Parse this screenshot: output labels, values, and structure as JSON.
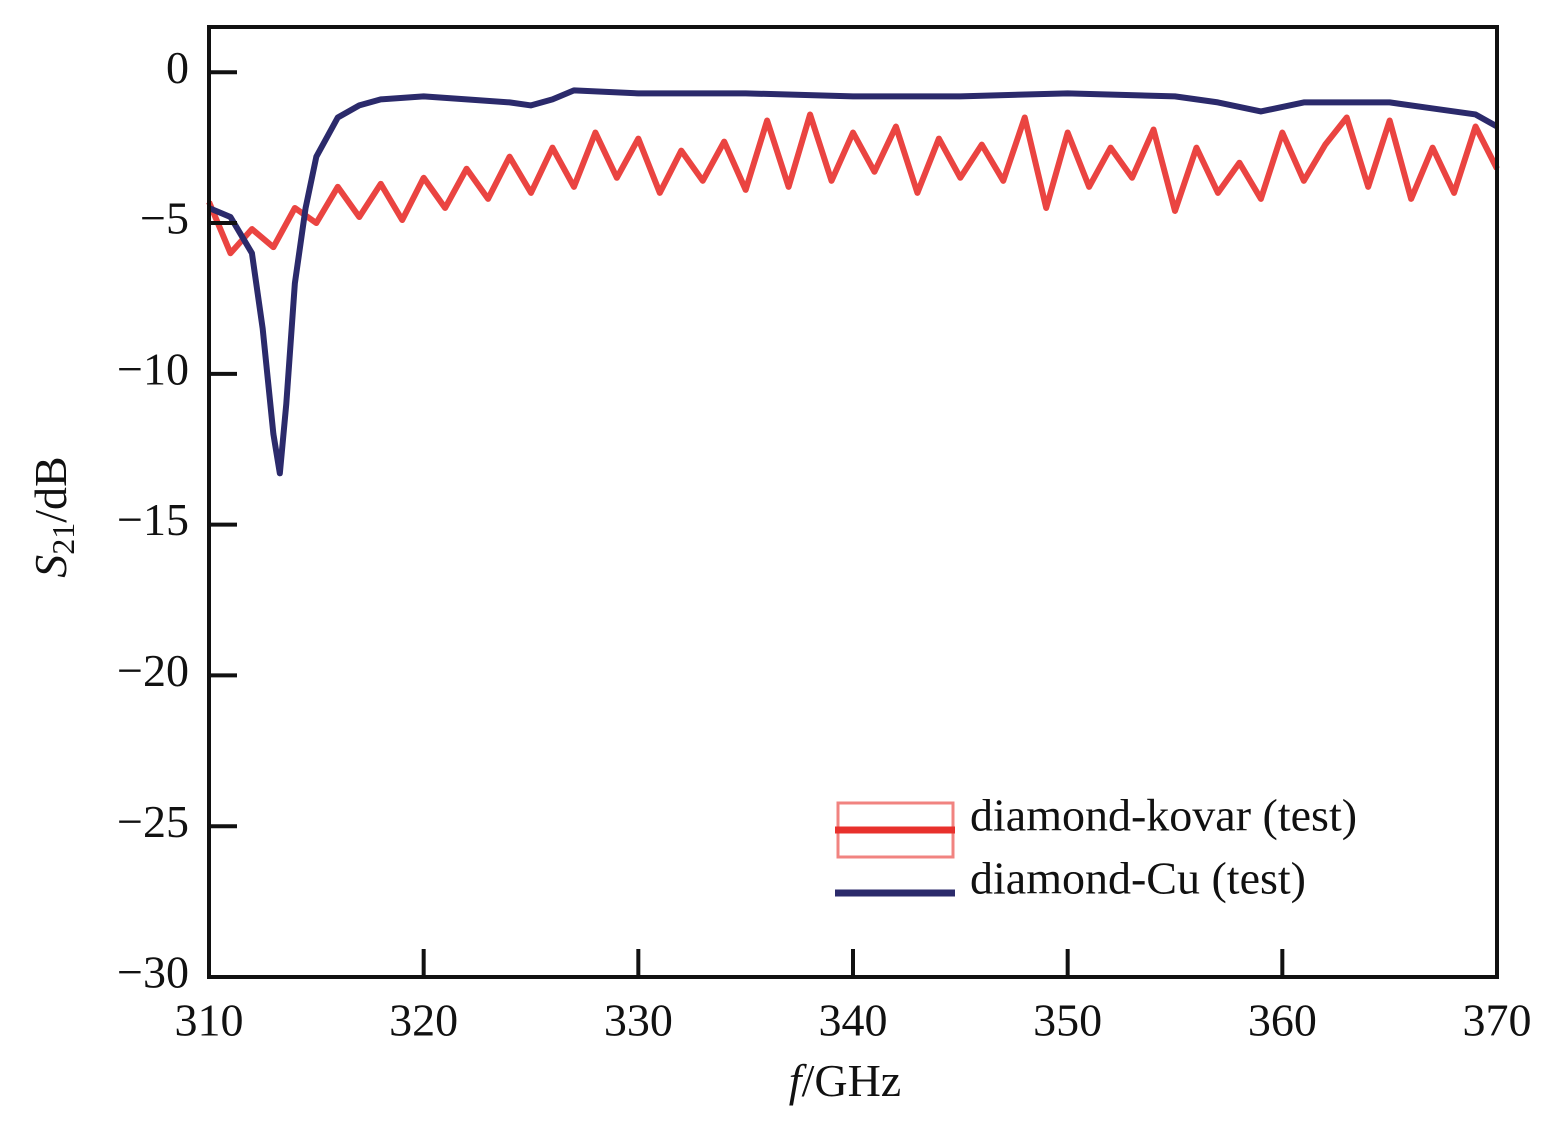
{
  "chart_data": {
    "type": "line",
    "xlabel": [
      "f",
      "/GHz"
    ],
    "ylabel": [
      "S",
      "21",
      "/dB"
    ],
    "xlim": [
      310,
      370
    ],
    "xticks": [
      310,
      320,
      330,
      340,
      350,
      360,
      370
    ],
    "ylim": [
      -30,
      1.5
    ],
    "yticks": [
      0,
      {
        "value": -5,
        "label": "−5"
      },
      {
        "value": -10,
        "label": "−10"
      },
      {
        "value": -15,
        "label": "−15"
      },
      {
        "value": -20,
        "label": "−20"
      },
      {
        "value": -25,
        "label": "−25"
      },
      {
        "value": -30,
        "label": "−30"
      }
    ],
    "legend": "lower right",
    "series": [
      {
        "name": "diamond-kovar (test)",
        "color": "#e8302c",
        "x": [
          310,
          311,
          312,
          313,
          314,
          315,
          316,
          317,
          318,
          319,
          320,
          321,
          322,
          323,
          324,
          325,
          326,
          327,
          328,
          329,
          330,
          331,
          332,
          333,
          334,
          335,
          336,
          337,
          338,
          339,
          340,
          341,
          342,
          343,
          344,
          345,
          346,
          347,
          348,
          349,
          350,
          351,
          352,
          353,
          354,
          355,
          356,
          357,
          358,
          359,
          360,
          361,
          362,
          363,
          364,
          365,
          366,
          367,
          368,
          369,
          370
        ],
        "values": [
          -4.3,
          -6.0,
          -5.2,
          -5.8,
          -4.5,
          -5.0,
          -3.8,
          -4.8,
          -3.7,
          -4.9,
          -3.5,
          -4.5,
          -3.2,
          -4.2,
          -2.8,
          -4.0,
          -2.5,
          -3.8,
          -2.0,
          -3.5,
          -2.2,
          -4.0,
          -2.6,
          -3.6,
          -2.3,
          -3.9,
          -1.6,
          -3.8,
          -1.4,
          -3.6,
          -2.0,
          -3.3,
          -1.8,
          -4.0,
          -2.2,
          -3.5,
          -2.4,
          -3.6,
          -1.5,
          -4.5,
          -2.0,
          -3.8,
          -2.5,
          -3.5,
          -1.9,
          -4.6,
          -2.5,
          -4.0,
          -3.0,
          -4.2,
          -2.0,
          -3.6,
          -2.4,
          -1.5,
          -3.8,
          -1.6,
          -4.2,
          -2.5,
          -4.0,
          -1.8,
          -3.2
        ]
      },
      {
        "name": "diamond-Cu (test)",
        "color": "#2b2a6b",
        "x": [
          310,
          311,
          312,
          312.5,
          313,
          313.3,
          313.6,
          314,
          314.5,
          315,
          316,
          317,
          318,
          320,
          322,
          324,
          325,
          326,
          327,
          330,
          335,
          340,
          345,
          350,
          355,
          357,
          359,
          361,
          363,
          365,
          367,
          369,
          370
        ],
        "values": [
          -4.5,
          -4.8,
          -6.0,
          -8.5,
          -12.0,
          -13.3,
          -11.0,
          -7.0,
          -4.5,
          -2.8,
          -1.5,
          -1.1,
          -0.9,
          -0.8,
          -0.9,
          -1.0,
          -1.1,
          -0.9,
          -0.6,
          -0.7,
          -0.7,
          -0.8,
          -0.8,
          -0.7,
          -0.8,
          -1.0,
          -1.3,
          -1.0,
          -1.0,
          -1.0,
          -1.2,
          -1.4,
          -1.8
        ]
      }
    ]
  }
}
